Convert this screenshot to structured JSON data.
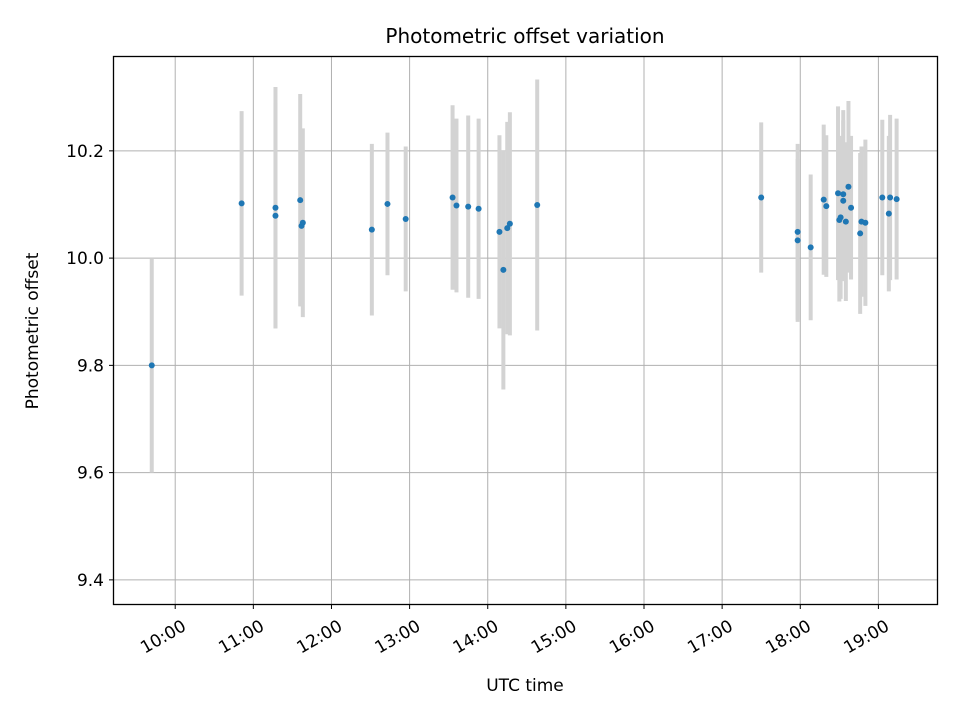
{
  "chart_data": {
    "type": "scatter",
    "title": "Photometric offset variation",
    "xlabel": "UTC time",
    "ylabel": "Photometric offset",
    "x_unit": "UTC time (HH:MM)",
    "x_ticks": [
      "10:00",
      "11:00",
      "12:00",
      "13:00",
      "14:00",
      "15:00",
      "16:00",
      "17:00",
      "18:00",
      "19:00"
    ],
    "y_ticks": [
      9.4,
      9.6,
      9.8,
      10.0,
      10.2
    ],
    "xlim": [
      "09:13",
      "19:45"
    ],
    "ylim": [
      9.355,
      10.375
    ],
    "grid": true,
    "point_color": "#1f77b4",
    "errorbar_color": "#d3d3d3",
    "series": [
      {
        "points": [
          {
            "x": "09:42",
            "y": 9.8,
            "err": 0.2
          },
          {
            "x": "10:51",
            "y": 10.102,
            "err": 0.172
          },
          {
            "x": "11:17",
            "y": 10.094,
            "err": 0.225
          },
          {
            "x": "11:17",
            "y": 10.079,
            "err": 0.21
          },
          {
            "x": "11:36",
            "y": 10.108,
            "err": 0.198
          },
          {
            "x": "11:37",
            "y": 10.06,
            "err": 0.15
          },
          {
            "x": "11:38",
            "y": 10.066,
            "err": 0.176
          },
          {
            "x": "12:31",
            "y": 10.053,
            "err": 0.16
          },
          {
            "x": "12:43",
            "y": 10.101,
            "err": 0.133
          },
          {
            "x": "12:57",
            "y": 10.073,
            "err": 0.135
          },
          {
            "x": "13:33",
            "y": 10.113,
            "err": 0.172
          },
          {
            "x": "13:36",
            "y": 10.098,
            "err": 0.162
          },
          {
            "x": "13:45",
            "y": 10.096,
            "err": 0.17
          },
          {
            "x": "13:53",
            "y": 10.092,
            "err": 0.168
          },
          {
            "x": "14:09",
            "y": 10.049,
            "err": 0.18
          },
          {
            "x": "14:12",
            "y": 9.978,
            "err": 0.223
          },
          {
            "x": "14:15",
            "y": 10.056,
            "err": 0.198
          },
          {
            "x": "14:17",
            "y": 10.064,
            "err": 0.208
          },
          {
            "x": "14:38",
            "y": 10.099,
            "err": 0.234
          },
          {
            "x": "17:30",
            "y": 10.113,
            "err": 0.14
          },
          {
            "x": "17:58",
            "y": 10.049,
            "err": 0.164
          },
          {
            "x": "17:58",
            "y": 10.033,
            "err": 0.152
          },
          {
            "x": "18:08",
            "y": 10.02,
            "err": 0.136
          },
          {
            "x": "18:18",
            "y": 10.109,
            "err": 0.14
          },
          {
            "x": "18:20",
            "y": 10.097,
            "err": 0.132
          },
          {
            "x": "18:29",
            "y": 10.121,
            "err": 0.162
          },
          {
            "x": "18:30",
            "y": 10.071,
            "err": 0.152
          },
          {
            "x": "18:31",
            "y": 10.076,
            "err": 0.152
          },
          {
            "x": "18:33",
            "y": 10.119,
            "err": 0.157
          },
          {
            "x": "18:33",
            "y": 10.107,
            "err": 0.15
          },
          {
            "x": "18:35",
            "y": 10.068,
            "err": 0.148
          },
          {
            "x": "18:37",
            "y": 10.133,
            "err": 0.16
          },
          {
            "x": "18:39",
            "y": 10.094,
            "err": 0.134
          },
          {
            "x": "18:46",
            "y": 10.046,
            "err": 0.15
          },
          {
            "x": "18:47",
            "y": 10.068,
            "err": 0.14
          },
          {
            "x": "18:50",
            "y": 10.066,
            "err": 0.155
          },
          {
            "x": "19:03",
            "y": 10.113,
            "err": 0.145
          },
          {
            "x": "19:08",
            "y": 10.083,
            "err": 0.145
          },
          {
            "x": "19:09",
            "y": 10.113,
            "err": 0.154
          },
          {
            "x": "19:14",
            "y": 10.11,
            "err": 0.15
          }
        ]
      }
    ]
  }
}
